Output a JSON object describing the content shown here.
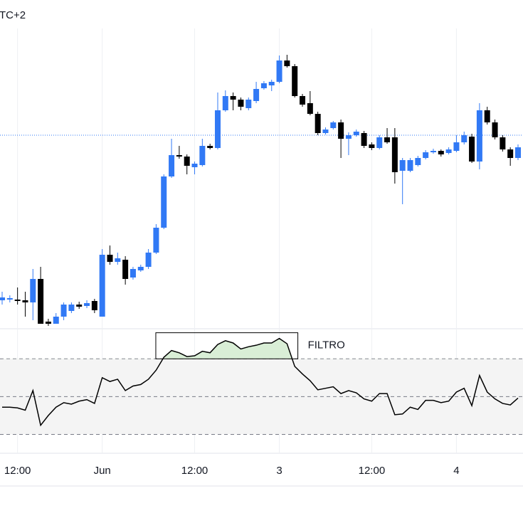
{
  "chart_data": [
    {
      "type": "candlestick",
      "title": "TC+2",
      "categories": [
        null,
        null,
        "12:00",
        null,
        null,
        null,
        null,
        null,
        null,
        null,
        null,
        null,
        null,
        "Jun",
        null,
        null,
        null,
        null,
        null,
        null,
        null,
        null,
        null,
        null,
        null,
        "12:00",
        null,
        null,
        null,
        null,
        null,
        null,
        null,
        null,
        null,
        null,
        "3",
        null,
        null,
        null,
        null,
        null,
        null,
        null,
        null,
        null,
        null,
        null,
        "12:00",
        null,
        null,
        null,
        null,
        null,
        null,
        null,
        null,
        null,
        null,
        "4",
        null,
        null,
        null,
        null,
        null,
        null,
        null,
        null
      ],
      "open": [
        38,
        39,
        39,
        38,
        35,
        68,
        8,
        5,
        15,
        23,
        32,
        30,
        37,
        15,
        102,
        92,
        95,
        70,
        80,
        85,
        105,
        140,
        212,
        242,
        240,
        225,
        228,
        255,
        252,
        305,
        325,
        320,
        308,
        318,
        336,
        340,
        345,
        375,
        367,
        325,
        315,
        300,
        273,
        280,
        288,
        265,
        270,
        273,
        257,
        252,
        267,
        267,
        220,
        220,
        228,
        238,
        246,
        248,
        245,
        248,
        260,
        268,
        233,
        305,
        288,
        267,
        250,
        238
      ],
      "high": [
        50,
        45,
        56,
        50,
        82,
        85,
        12,
        20,
        35,
        35,
        36,
        38,
        40,
        110,
        115,
        105,
        100,
        85,
        88,
        110,
        145,
        215,
        265,
        255,
        243,
        233,
        265,
        258,
        330,
        333,
        330,
        323,
        323,
        345,
        346,
        348,
        382,
        383,
        370,
        328,
        332,
        303,
        281,
        290,
        292,
        274,
        278,
        276,
        260,
        270,
        280,
        280,
        238,
        238,
        241,
        249,
        251,
        250,
        253,
        270,
        275,
        272,
        315,
        310,
        292,
        270,
        253,
        257
      ],
      "low": [
        32,
        35,
        32,
        15,
        10,
        5,
        2,
        5,
        10,
        20,
        26,
        27,
        20,
        15,
        88,
        88,
        60,
        67,
        78,
        82,
        103,
        138,
        210,
        237,
        215,
        215,
        226,
        250,
        250,
        303,
        305,
        305,
        305,
        315,
        334,
        332,
        343,
        365,
        323,
        310,
        298,
        270,
        271,
        278,
        238,
        242,
        268,
        252,
        249,
        250,
        258,
        202,
        173,
        218,
        226,
        236,
        244,
        240,
        243,
        246,
        257,
        231,
        222,
        285,
        264,
        247,
        227,
        235
      ],
      "close": [
        42,
        41,
        37,
        35,
        68,
        5,
        5,
        15,
        32,
        32,
        29,
        34,
        24,
        102,
        92,
        97,
        68,
        82,
        85,
        105,
        140,
        212,
        242,
        240,
        227,
        230,
        255,
        252,
        305,
        325,
        320,
        310,
        320,
        335,
        343,
        345,
        375,
        367,
        325,
        313,
        300,
        273,
        278,
        288,
        265,
        270,
        275,
        255,
        252,
        267,
        260,
        218,
        235,
        235,
        238,
        246,
        248,
        243,
        250,
        260,
        270,
        233,
        305,
        288,
        267,
        250,
        238,
        253
      ],
      "up_color": "#3179f5",
      "down_color": "#000000",
      "ylim": [
        0,
        420
      ],
      "price_line": 270,
      "price_line_color": "#3179f5"
    },
    {
      "type": "line",
      "series": [
        {
          "name": "FILTRO",
          "color": "#000000",
          "values": [
            36,
            36,
            35,
            32,
            58,
            12,
            25,
            36,
            42,
            40,
            44,
            46,
            41,
            75,
            70,
            73,
            58,
            64,
            66,
            73,
            85,
            102,
            111,
            108,
            103,
            104,
            110,
            108,
            119,
            124,
            121,
            113,
            116,
            118,
            121,
            121,
            127,
            120,
            90,
            80,
            71,
            59,
            61,
            63,
            54,
            58,
            55,
            47,
            44,
            54,
            54,
            26,
            27,
            36,
            33,
            45,
            45,
            42,
            44,
            56,
            61,
            38,
            78,
            56,
            47,
            41,
            39,
            48
          ]
        }
      ],
      "levels": [
        0,
        50,
        100
      ],
      "ylim": [
        -25,
        137
      ],
      "fill_color": "#d9eed6"
    }
  ]
}
